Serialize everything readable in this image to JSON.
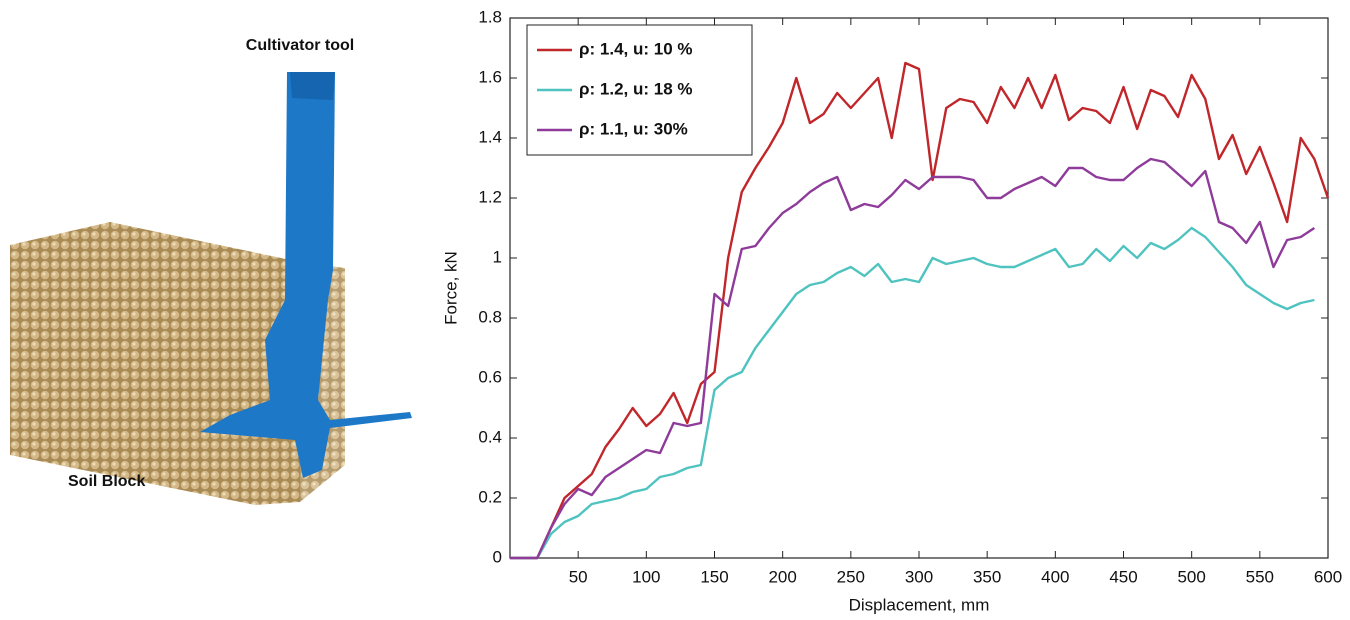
{
  "figure_labels": {
    "tool": "Cultivator tool",
    "block": "Soil Block"
  },
  "chart_data": {
    "type": "line",
    "xlabel": "Displacement, mm",
    "ylabel": "Force, kN",
    "x": [
      0,
      10,
      20,
      30,
      40,
      50,
      60,
      70,
      80,
      90,
      100,
      110,
      120,
      130,
      140,
      150,
      160,
      170,
      180,
      190,
      200,
      210,
      220,
      230,
      240,
      250,
      260,
      270,
      280,
      290,
      300,
      310,
      320,
      330,
      340,
      350,
      360,
      370,
      380,
      390,
      400,
      410,
      420,
      430,
      440,
      450,
      460,
      470,
      480,
      490,
      500,
      510,
      520,
      530,
      540,
      550,
      560,
      570,
      580,
      590,
      600
    ],
    "series": [
      {
        "name": "ρ: 1.4, u: 10 %",
        "color": "#c0262a",
        "values": [
          0,
          0,
          0,
          0.1,
          0.2,
          0.24,
          0.28,
          0.37,
          0.43,
          0.5,
          0.44,
          0.48,
          0.55,
          0.45,
          0.58,
          0.62,
          1.0,
          1.22,
          1.3,
          1.37,
          1.45,
          1.6,
          1.45,
          1.48,
          1.55,
          1.5,
          1.55,
          1.6,
          1.4,
          1.65,
          1.63,
          1.26,
          1.5,
          1.53,
          1.52,
          1.45,
          1.57,
          1.5,
          1.6,
          1.5,
          1.61,
          1.46,
          1.5,
          1.49,
          1.45,
          1.57,
          1.43,
          1.56,
          1.54,
          1.47,
          1.61,
          1.53,
          1.33,
          1.41,
          1.28,
          1.37,
          1.25,
          1.12,
          1.4,
          1.33,
          1.2
        ]
      },
      {
        "name": "ρ: 1.2, u: 18 %",
        "color": "#4fc3c0",
        "values": [
          0,
          0,
          0,
          0.08,
          0.12,
          0.14,
          0.18,
          0.19,
          0.2,
          0.22,
          0.23,
          0.27,
          0.28,
          0.3,
          0.31,
          0.56,
          0.6,
          0.62,
          0.7,
          0.76,
          0.82,
          0.88,
          0.91,
          0.92,
          0.95,
          0.97,
          0.94,
          0.98,
          0.92,
          0.93,
          0.92,
          1.0,
          0.98,
          0.99,
          1.0,
          0.98,
          0.97,
          0.97,
          0.99,
          1.01,
          1.03,
          0.97,
          0.98,
          1.03,
          0.99,
          1.04,
          1.0,
          1.05,
          1.03,
          1.06,
          1.1,
          1.07,
          1.02,
          0.97,
          0.91,
          0.88,
          0.85,
          0.83,
          0.85,
          0.86,
          null
        ]
      },
      {
        "name": "ρ: 1.1, u: 30%",
        "color": "#8e3b9a",
        "values": [
          0,
          0,
          0,
          0.1,
          0.18,
          0.23,
          0.21,
          0.27,
          0.3,
          0.33,
          0.36,
          0.35,
          0.45,
          0.44,
          0.45,
          0.88,
          0.84,
          1.03,
          1.04,
          1.1,
          1.15,
          1.18,
          1.22,
          1.25,
          1.27,
          1.16,
          1.18,
          1.17,
          1.21,
          1.26,
          1.23,
          1.27,
          1.27,
          1.27,
          1.26,
          1.2,
          1.2,
          1.23,
          1.25,
          1.27,
          1.24,
          1.3,
          1.3,
          1.27,
          1.26,
          1.26,
          1.3,
          1.33,
          1.32,
          1.28,
          1.24,
          1.29,
          1.12,
          1.1,
          1.05,
          1.12,
          0.97,
          1.06,
          1.07,
          1.1,
          null
        ]
      }
    ],
    "xlim": [
      0,
      600
    ],
    "xticks": [
      50,
      100,
      150,
      200,
      250,
      300,
      350,
      400,
      450,
      500,
      550,
      600
    ],
    "ylim": [
      0,
      1.8
    ],
    "yticks": [
      0,
      0.2,
      0.4,
      0.6,
      0.8,
      1,
      1.2,
      1.4,
      1.6,
      1.8
    ],
    "grid": false,
    "legend": "upper left"
  }
}
